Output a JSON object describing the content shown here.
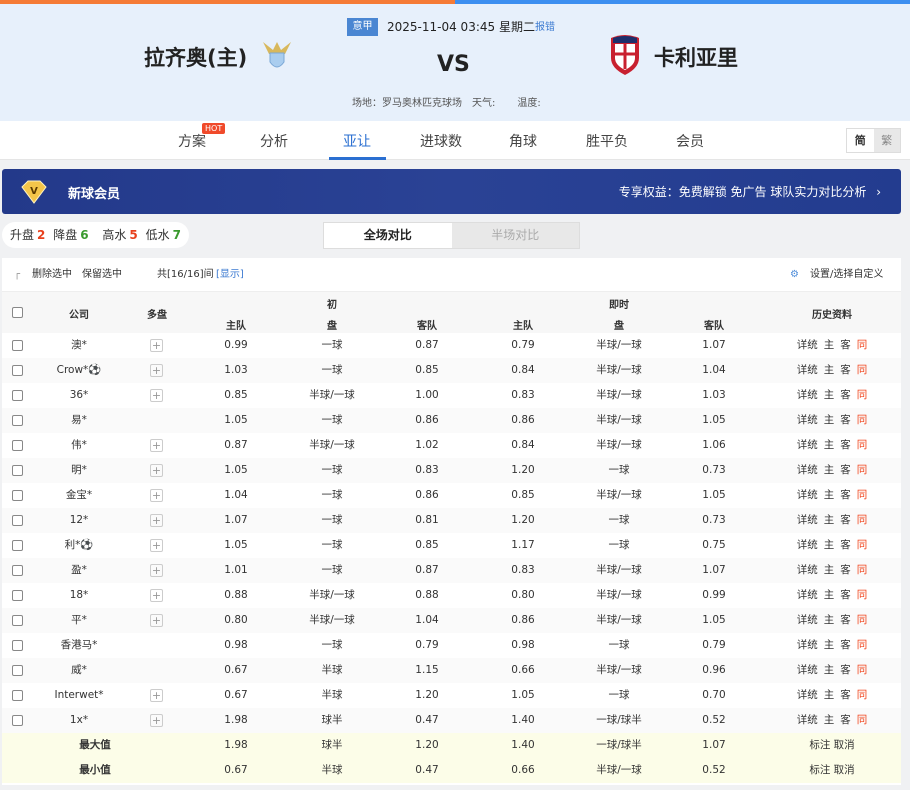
{
  "match": {
    "league": "意甲",
    "datetime": "2025-11-04 03:45 星期二",
    "report": "报错",
    "home": "拉齐奥(主)",
    "away": "卡利亚里",
    "vs": "VS",
    "venue": "场地：罗马奥林匹克球场",
    "weather": "天气:",
    "temp": "温度:"
  },
  "tabs": [
    {
      "label": "方案",
      "badge": "HOT"
    },
    {
      "label": "分析"
    },
    {
      "label": "亚让",
      "active": true
    },
    {
      "label": "进球数"
    },
    {
      "label": "角球"
    },
    {
      "label": "胜平负"
    },
    {
      "label": "会员"
    }
  ],
  "lang": {
    "simplified": "简",
    "traditional": "繁"
  },
  "banner": {
    "title": "新球会员",
    "benefits": "专享权益：免费解锁 免广告 球队实力对比分析"
  },
  "filters": {
    "up_label": "升盘",
    "up": "2",
    "down_label": "降盘",
    "down": "6",
    "high_label": "高水",
    "high": "5",
    "low_label": "低水",
    "low": "7"
  },
  "segment": {
    "full": "全场对比",
    "half": "半场对比"
  },
  "toolbar": {
    "delete": "删除选中",
    "keep": "保留选中",
    "count": "共[16/16]间",
    "show": "[显示]",
    "settings": "设置/选择自定义"
  },
  "headers": {
    "company": "公司",
    "multi": "多盘",
    "initial": "初",
    "live": "即时",
    "home": "主队",
    "line": "盘",
    "away": "客队",
    "history": "历史资料"
  },
  "history_links": [
    "详统",
    "主",
    "客",
    "同"
  ],
  "colors": {
    "accent": "#2a6fd1",
    "up": "#e8401c",
    "down": "#3a9a2e",
    "same": "#f0441c",
    "banner": "#2a4295"
  },
  "rows": [
    {
      "company": "澳*",
      "multi": true,
      "ih": "0.99",
      "il": "一球",
      "ia": "0.87",
      "lh": "0.79",
      "ll": "半球/一球",
      "la": "1.07"
    },
    {
      "company": "Crow*⚽",
      "multi": true,
      "ih": "1.03",
      "il": "一球",
      "ia": "0.85",
      "lh": "0.84",
      "ll": "半球/一球",
      "la": "1.04"
    },
    {
      "company": "36*",
      "multi": true,
      "ih": "0.85",
      "il": "半球/一球",
      "ia": "1.00",
      "lh": "0.83",
      "ll": "半球/一球",
      "la": "1.03"
    },
    {
      "company": "易*",
      "multi": false,
      "ih": "1.05",
      "il": "一球",
      "ia": "0.86",
      "lh": "0.86",
      "ll": "半球/一球",
      "la": "1.05"
    },
    {
      "company": "伟*",
      "multi": true,
      "ih": "0.87",
      "il": "半球/一球",
      "ia": "1.02",
      "lh": "0.84",
      "ll": "半球/一球",
      "la": "1.06"
    },
    {
      "company": "明*",
      "multi": true,
      "ih": "1.05",
      "il": "一球",
      "ia": "0.83",
      "lh": "1.20",
      "ll": "一球",
      "la": "0.73"
    },
    {
      "company": "金宝*",
      "multi": true,
      "ih": "1.04",
      "il": "一球",
      "ia": "0.86",
      "lh": "0.85",
      "ll": "半球/一球",
      "la": "1.05"
    },
    {
      "company": "12*",
      "multi": true,
      "ih": "1.07",
      "il": "一球",
      "ia": "0.81",
      "lh": "1.20",
      "ll": "一球",
      "la": "0.73"
    },
    {
      "company": "利*⚽",
      "multi": true,
      "ih": "1.05",
      "il": "一球",
      "ia": "0.85",
      "lh": "1.17",
      "ll": "一球",
      "la": "0.75"
    },
    {
      "company": "盈*",
      "multi": true,
      "ih": "1.01",
      "il": "一球",
      "ia": "0.87",
      "lh": "0.83",
      "ll": "半球/一球",
      "la": "1.07"
    },
    {
      "company": "18*",
      "multi": true,
      "ih": "0.88",
      "il": "半球/一球",
      "ia": "0.88",
      "lh": "0.80",
      "ll": "半球/一球",
      "la": "0.99"
    },
    {
      "company": "平*",
      "multi": true,
      "ih": "0.80",
      "il": "半球/一球",
      "ia": "1.04",
      "lh": "0.86",
      "ll": "半球/一球",
      "la": "1.05"
    },
    {
      "company": "香港马*",
      "multi": false,
      "ih": "0.98",
      "il": "一球",
      "ia": "0.79",
      "lh": "0.98",
      "ll": "一球",
      "la": "0.79"
    },
    {
      "company": "威*",
      "multi": false,
      "ih": "0.67",
      "il": "半球",
      "ia": "1.15",
      "lh": "0.66",
      "ll": "半球/一球",
      "la": "0.96"
    },
    {
      "company": "Interwet*",
      "multi": true,
      "ih": "0.67",
      "il": "半球",
      "ia": "1.20",
      "lh": "1.05",
      "ll": "一球",
      "la": "0.70"
    },
    {
      "company": "1x*",
      "multi": true,
      "ih": "1.98",
      "il": "球半",
      "ia": "0.47",
      "lh": "1.40",
      "ll": "一球/球半",
      "la": "0.52"
    }
  ],
  "summary": [
    {
      "label": "最大值",
      "ih": "1.98",
      "il": "球半",
      "ia": "1.20",
      "lh": "1.40",
      "ll": "一球/球半",
      "la": "1.07",
      "actions": "标注 取消"
    },
    {
      "label": "最小值",
      "ih": "0.67",
      "il": "半球",
      "ia": "0.47",
      "lh": "0.66",
      "ll": "半球/一球",
      "la": "0.52",
      "actions": "标注 取消"
    }
  ]
}
